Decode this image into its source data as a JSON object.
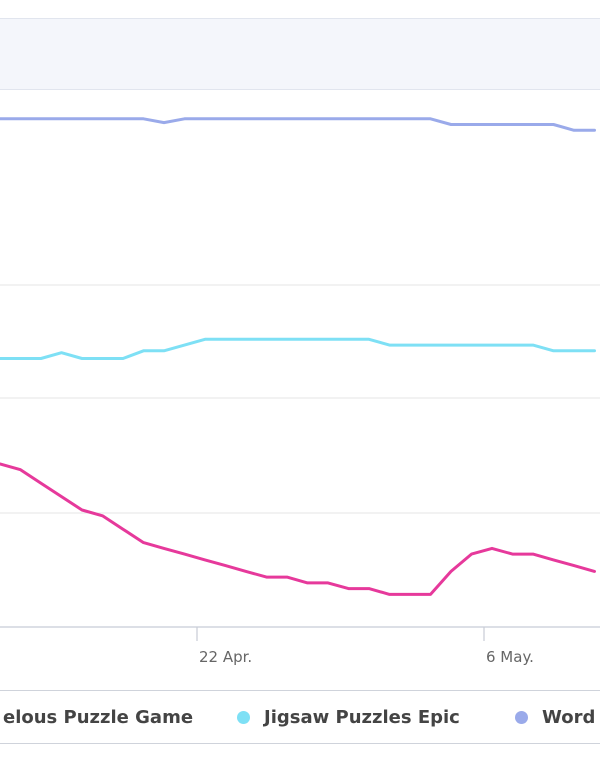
{
  "chart_data": {
    "type": "line",
    "title": "",
    "xlabel": "",
    "ylabel": "",
    "x_ticks": [
      {
        "label": "22 Apr.",
        "index": 10
      },
      {
        "label": "6 May.",
        "index": 24
      }
    ],
    "grid": true,
    "legend_position": "bottom",
    "series": [
      {
        "name": "Word",
        "color": "#9aaaea",
        "values": [
          3,
          3,
          3,
          3,
          3,
          3,
          3,
          3,
          3.4,
          3,
          3,
          3,
          3,
          3,
          3,
          3,
          3,
          3,
          3,
          3,
          3,
          3,
          3.6,
          3.6,
          3.6,
          3.6,
          3.6,
          3.6,
          4.2,
          4.2
        ]
      },
      {
        "name": "Jigsaw Puzzles Epic",
        "color": "#7ee0f5",
        "values": [
          28,
          28,
          28,
          27.4,
          28,
          28,
          28,
          27.2,
          27.2,
          26.6,
          26,
          26,
          26,
          26,
          26,
          26,
          26,
          26,
          26,
          26.6,
          26.6,
          26.6,
          26.6,
          26.6,
          26.6,
          26.6,
          26.6,
          27.2,
          27.2,
          27.2
        ]
      },
      {
        "name": "elous Puzzle Game",
        "color": "#e6399b",
        "values": [
          39,
          39.6,
          41,
          42.4,
          43.8,
          44.4,
          45.8,
          47.2,
          47.8,
          48.4,
          49,
          49.6,
          50.2,
          50.8,
          50.8,
          51.4,
          51.4,
          52,
          52,
          52.6,
          52.6,
          52.6,
          50.2,
          48.4,
          47.8,
          48.4,
          48.4,
          49,
          49.6,
          50.2
        ]
      }
    ],
    "ylim": [
      0,
      56
    ],
    "y_reversed": true
  }
}
